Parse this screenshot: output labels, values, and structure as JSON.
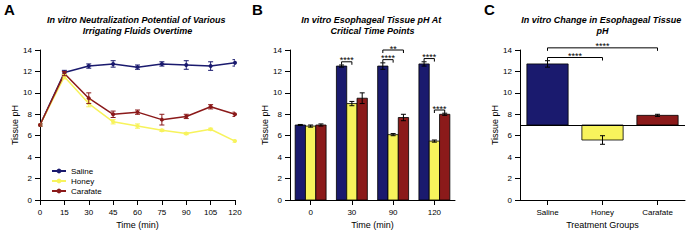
{
  "chart_data": [
    {
      "panel": "A",
      "type": "line",
      "title": "In vitro Neutralization Potential of Various Irrigating Fluids Overtime",
      "x_label": "Time (min)",
      "y_label": "Tissue pH",
      "x": [
        0,
        15,
        30,
        45,
        60,
        75,
        90,
        105,
        120
      ],
      "xlim": [
        0,
        120
      ],
      "xticks": [
        0,
        15,
        30,
        45,
        60,
        75,
        90,
        105,
        120
      ],
      "ylim": [
        0,
        14
      ],
      "yticks": [
        0,
        2,
        4,
        6,
        8,
        10,
        12,
        14
      ],
      "grid": false,
      "legend": "lower left",
      "series": [
        {
          "name": "Saline",
          "color": "#1a1a6e",
          "marker": "circle",
          "values": [
            7.0,
            11.9,
            12.5,
            12.7,
            12.4,
            12.7,
            12.6,
            12.5,
            12.8
          ],
          "errors": [
            0.1,
            0.2,
            0.2,
            0.3,
            0.2,
            0.2,
            0.4,
            0.4,
            0.3
          ]
        },
        {
          "name": "Honey",
          "color": "#f7f35c",
          "marker": "circle",
          "values": [
            7.0,
            11.5,
            9.0,
            7.3,
            6.9,
            6.5,
            6.2,
            6.6,
            5.5
          ],
          "errors": [
            0.1,
            0.2,
            0.3,
            0.2,
            0.2,
            0.1,
            0.1,
            0.1,
            0.1
          ]
        },
        {
          "name": "Carafate",
          "color": "#8b1a1a",
          "marker": "circle",
          "values": [
            7.0,
            11.8,
            9.5,
            8.0,
            8.2,
            7.5,
            7.8,
            8.7,
            8.0
          ],
          "errors": [
            0.1,
            0.2,
            0.5,
            0.3,
            0.2,
            0.5,
            0.2,
            0.2,
            0.2
          ]
        }
      ]
    },
    {
      "panel": "B",
      "type": "bar",
      "title": "In vitro Esophageal Tissue pH At Critical Time Points",
      "x_label": "Time (min)",
      "y_label": "Tissue pH",
      "categories": [
        "0",
        "30",
        "90",
        "120"
      ],
      "ylim": [
        0,
        14
      ],
      "yticks": [
        0,
        2,
        4,
        6,
        8,
        10,
        12,
        14
      ],
      "grid": false,
      "series": [
        {
          "name": "Saline",
          "color": "#1a1a6e",
          "values": [
            7.0,
            12.5,
            12.5,
            12.7
          ],
          "errors": [
            0.05,
            0.1,
            0.3,
            0.2
          ]
        },
        {
          "name": "Honey",
          "color": "#f7f35c",
          "values": [
            6.9,
            9.0,
            6.1,
            5.5
          ],
          "errors": [
            0.1,
            0.2,
            0.1,
            0.1
          ]
        },
        {
          "name": "Carafate",
          "color": "#8b1a1a",
          "values": [
            7.0,
            9.5,
            7.7,
            8.0
          ],
          "errors": [
            0.1,
            0.5,
            0.3,
            0.1
          ]
        }
      ],
      "significance": [
        {
          "category": "30",
          "from": "Saline",
          "to": "Honey",
          "label": "****"
        },
        {
          "category": "90",
          "from": "Saline",
          "to": "Honey",
          "label": "****"
        },
        {
          "category": "90",
          "from": "Saline",
          "to": "Carafate",
          "label": "**"
        },
        {
          "category": "120",
          "from": "Saline",
          "to": "Honey",
          "label": "****"
        },
        {
          "category": "120",
          "from": "Honey",
          "to": "Carafate",
          "label": "****"
        }
      ]
    },
    {
      "panel": "C",
      "type": "bar",
      "title": "In vitro Change in Esophageal Tissue pH",
      "x_label": "Treatment Groups",
      "y_label": "Tissue pH",
      "categories": [
        "Saline",
        "Honey",
        "Carafate"
      ],
      "values": [
        12.7,
        5.6,
        7.9
      ],
      "errors": [
        0.3,
        0.4,
        0.1
      ],
      "colors": [
        "#1a1a6e",
        "#f7f35c",
        "#8b1a1a"
      ],
      "baseline": 7,
      "ylim": [
        0,
        14
      ],
      "yticks": [
        0,
        2,
        4,
        6,
        8,
        10,
        12,
        14
      ],
      "grid": false,
      "significance": [
        {
          "from": "Saline",
          "to": "Honey",
          "label": "****"
        },
        {
          "from": "Saline",
          "to": "Carafate",
          "label": "****"
        }
      ]
    }
  ]
}
